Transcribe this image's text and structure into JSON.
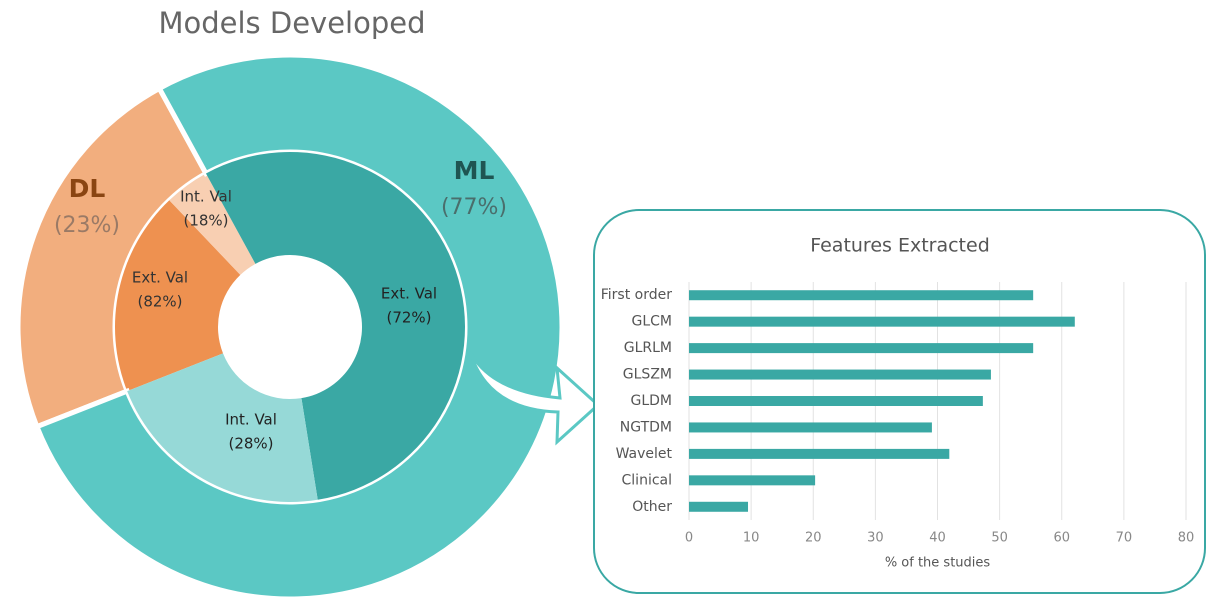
{
  "chart_data": [
    {
      "type": "sunburst",
      "title": "Models Developed",
      "categories": [
        "DL",
        "ML"
      ],
      "values": [
        23,
        77
      ],
      "value_labels": [
        "(23%)",
        "(77%)"
      ],
      "colors": [
        "#f2ae7e",
        "#5bc8c4"
      ],
      "inner": [
        {
          "categories": [
            "Ext. Val",
            "Int. Val"
          ],
          "values": [
            82,
            18
          ],
          "value_labels": [
            "(82%)",
            "(18%)"
          ],
          "colors": [
            "#ee9150",
            "#f8cfb2"
          ]
        },
        {
          "categories": [
            "Ext. Val",
            "Int. Val"
          ],
          "values": [
            72,
            28
          ],
          "value_labels": [
            "(72%)",
            "(28%)"
          ],
          "colors": [
            "#3aa8a4",
            "#96d9d7"
          ]
        }
      ]
    },
    {
      "type": "bar",
      "orientation": "horizontal",
      "title": "Features Extracted",
      "categories": [
        "First order",
        "GLCM",
        "GLRLM",
        "GLSZM",
        "GLDM",
        "NGTDM",
        "Wavelet",
        "Clinical",
        "Other"
      ],
      "values": [
        55.4,
        62.1,
        55.4,
        48.6,
        47.3,
        39.1,
        41.9,
        20.3,
        9.5
      ],
      "color": "#3aa8a4",
      "xlabel": "% of the studies",
      "xlim": [
        0,
        80
      ],
      "xticks": [
        0,
        10,
        20,
        30,
        40,
        50,
        60,
        70,
        80
      ],
      "grid": true
    }
  ]
}
